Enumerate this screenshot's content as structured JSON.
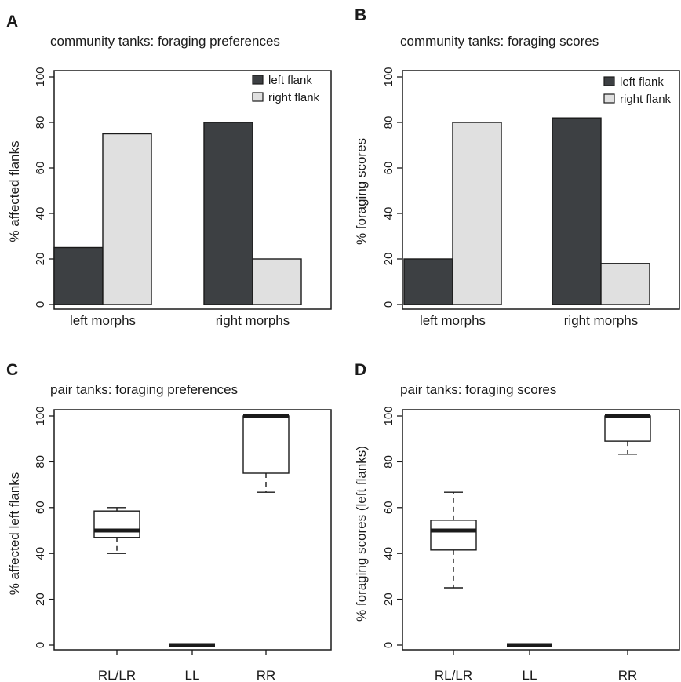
{
  "colors": {
    "dark_bar": "#3d4043",
    "light_bar": "#e0e0e0",
    "stroke": "#1a1a1a"
  },
  "chart_data": [
    {
      "id": "A",
      "type": "bar",
      "panel_letter": "A",
      "title": "community tanks: foraging preferences",
      "ylabel": "% affected flanks",
      "xlabel": "",
      "ylim": [
        0,
        100
      ],
      "yticks": [
        0,
        20,
        40,
        60,
        80,
        100
      ],
      "categories": [
        "left morphs",
        "right morphs"
      ],
      "series": [
        {
          "name": "left flank",
          "color": "#3d4043",
          "values": [
            25,
            80
          ]
        },
        {
          "name": "right flank",
          "color": "#e0e0e0",
          "values": [
            75,
            20
          ]
        }
      ],
      "legend_position": "top-right",
      "grid": false
    },
    {
      "id": "B",
      "type": "bar",
      "panel_letter": "B",
      "title": "community tanks: foraging scores",
      "ylabel": "% foraging scores",
      "xlabel": "",
      "ylim": [
        0,
        100
      ],
      "yticks": [
        0,
        20,
        40,
        60,
        80,
        100
      ],
      "categories": [
        "left morphs",
        "right morphs"
      ],
      "series": [
        {
          "name": "left flank",
          "color": "#3d4043",
          "values": [
            20,
            82
          ]
        },
        {
          "name": "right flank",
          "color": "#e0e0e0",
          "values": [
            80,
            18
          ]
        }
      ],
      "legend_position": "top-right",
      "grid": false
    },
    {
      "id": "C",
      "type": "boxplot",
      "panel_letter": "C",
      "title": "pair tanks: foraging preferences",
      "ylabel": "% affected left flanks",
      "xlabel": "",
      "ylim": [
        0,
        100
      ],
      "yticks": [
        0,
        20,
        40,
        60,
        80,
        100
      ],
      "categories": [
        "RL/LR",
        "LL",
        "RR"
      ],
      "boxes": [
        {
          "category": "RL/LR",
          "min": 40,
          "q1": 47,
          "median": 50,
          "q3": 58.5,
          "max": 60
        },
        {
          "category": "LL",
          "min": 0,
          "q1": 0,
          "median": 0,
          "q3": 0,
          "max": 0
        },
        {
          "category": "RR",
          "min": 66.7,
          "q1": 75,
          "median": 100,
          "q3": 100,
          "max": 100
        }
      ],
      "grid": false
    },
    {
      "id": "D",
      "type": "boxplot",
      "panel_letter": "D",
      "title": "pair tanks: foraging scores",
      "ylabel": "% foraging scores (left flanks)",
      "xlabel": "",
      "ylim": [
        0,
        100
      ],
      "yticks": [
        0,
        20,
        40,
        60,
        80,
        100
      ],
      "categories": [
        "RL/LR",
        "LL",
        "RR"
      ],
      "boxes": [
        {
          "category": "RL/LR",
          "min": 25,
          "q1": 41.5,
          "median": 50,
          "q3": 54.5,
          "max": 66.7
        },
        {
          "category": "LL",
          "min": 0,
          "q1": 0,
          "median": 0,
          "q3": 0,
          "max": 0
        },
        {
          "category": "RR",
          "min": 83.3,
          "q1": 89,
          "median": 100,
          "q3": 100,
          "max": 100
        }
      ],
      "grid": false
    }
  ]
}
